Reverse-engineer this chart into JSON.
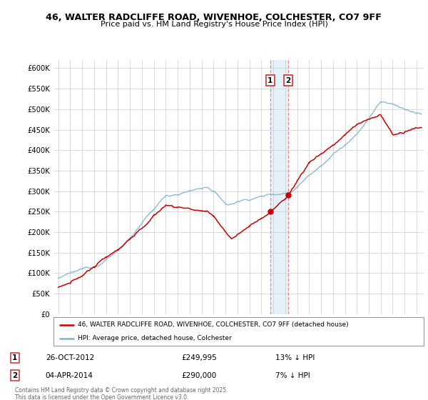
{
  "title_line1": "46, WALTER RADCLIFFE ROAD, WIVENHOE, COLCHESTER, CO7 9FF",
  "title_line2": "Price paid vs. HM Land Registry's House Price Index (HPI)",
  "ylim": [
    0,
    620000
  ],
  "yticks": [
    0,
    50000,
    100000,
    150000,
    200000,
    250000,
    300000,
    350000,
    400000,
    450000,
    500000,
    550000,
    600000
  ],
  "ytick_labels": [
    "£0",
    "£50K",
    "£100K",
    "£150K",
    "£200K",
    "£250K",
    "£300K",
    "£350K",
    "£400K",
    "£450K",
    "£500K",
    "£550K",
    "£600K"
  ],
  "sale1_price": 249995,
  "sale2_price": 290000,
  "legend_property": "46, WALTER RADCLIFFE ROAD, WIVENHOE, COLCHESTER, CO7 9FF (detached house)",
  "legend_hpi": "HPI: Average price, detached house, Colchester",
  "line_property_color": "#cc0000",
  "line_hpi_color": "#7fb3d3",
  "footer": "Contains HM Land Registry data © Crown copyright and database right 2025.\nThis data is licensed under the Open Government Licence v3.0.",
  "xstart_year": 1995,
  "xend_year": 2025
}
